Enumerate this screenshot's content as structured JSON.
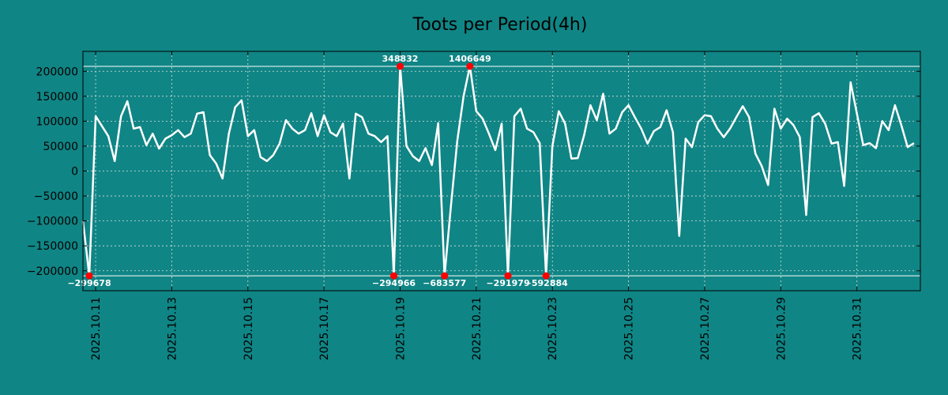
{
  "chart_data": {
    "type": "line",
    "title": "Toots per Period(4h)",
    "xlabel": "",
    "ylabel": "",
    "ylim": [
      -240000,
      240000
    ],
    "yticks": [
      -200000,
      -150000,
      -100000,
      -50000,
      0,
      50000,
      100000,
      150000,
      200000
    ],
    "ytick_labels": [
      "−200000",
      "−150000",
      "−100000",
      "−50000",
      "0",
      "50000",
      "100000",
      "150000",
      "200000"
    ],
    "xlim": [
      0,
      132
    ],
    "xticks": [
      2,
      14,
      26,
      38,
      50,
      62,
      74,
      86,
      98,
      110,
      122
    ],
    "xtick_labels": [
      "2025.10.11",
      "2025.10.13",
      "2025.10.15",
      "2025.10.17",
      "2025.10.19",
      "2025.10.21",
      "2025.10.23",
      "2025.10.25",
      "2025.10.27",
      "2025.10.29",
      "2025.10.31"
    ],
    "grid": true,
    "clip_limits": [
      -210000,
      210000
    ],
    "series": [
      {
        "name": "toots",
        "color": "#ffffff",
        "values": [
          -100000,
          -210000,
          110000,
          90000,
          70000,
          20000,
          110000,
          140000,
          85000,
          88000,
          52000,
          75000,
          45000,
          65000,
          72000,
          82000,
          68000,
          75000,
          115000,
          118000,
          32000,
          15000,
          -15000,
          75000,
          128000,
          142000,
          70000,
          82000,
          28000,
          20000,
          32000,
          55000,
          102000,
          85000,
          75000,
          82000,
          116000,
          70000,
          112000,
          78000,
          70000,
          95000,
          -15000,
          115000,
          108000,
          75000,
          70000,
          58000,
          70000,
          -210000,
          210000,
          50000,
          30000,
          20000,
          46000,
          12000,
          96000,
          -210000,
          -70000,
          60000,
          150000,
          210000,
          120000,
          105000,
          75000,
          42000,
          95000,
          -210000,
          110000,
          125000,
          85000,
          78000,
          56000,
          -210000,
          50000,
          120000,
          95000,
          25000,
          26000,
          72000,
          132000,
          102000,
          155000,
          75000,
          85000,
          118000,
          132000,
          108000,
          85000,
          55000,
          80000,
          88000,
          122000,
          78000,
          -130000,
          65000,
          48000,
          98000,
          112000,
          110000,
          85000,
          68000,
          85000,
          108000,
          130000,
          108000,
          35000,
          10000,
          -28000,
          125000,
          85000,
          105000,
          92000,
          68000,
          -88000,
          108000,
          116000,
          95000,
          55000,
          58000,
          -30000,
          178000,
          115000,
          52000,
          56000,
          46000,
          100000,
          82000,
          132000,
          92000,
          48000,
          56000
        ]
      }
    ],
    "annotations": [
      {
        "index": 1,
        "label": "−299678",
        "side": "low"
      },
      {
        "index": 49,
        "label": "−294966",
        "side": "low"
      },
      {
        "index": 50,
        "label": "348832",
        "side": "high"
      },
      {
        "index": 57,
        "label": "−683577",
        "side": "low"
      },
      {
        "index": 61,
        "label": "1406649",
        "side": "high"
      },
      {
        "index": 67,
        "label": "−291979",
        "side": "low"
      },
      {
        "index": 73,
        "label": "−592884",
        "side": "low"
      }
    ],
    "colors": {
      "background": "#108585",
      "line": "#ffffff",
      "marker": "#ff0000",
      "grid": "#dddddd",
      "axes": "#000000",
      "limit_line": "#ffffff"
    }
  }
}
